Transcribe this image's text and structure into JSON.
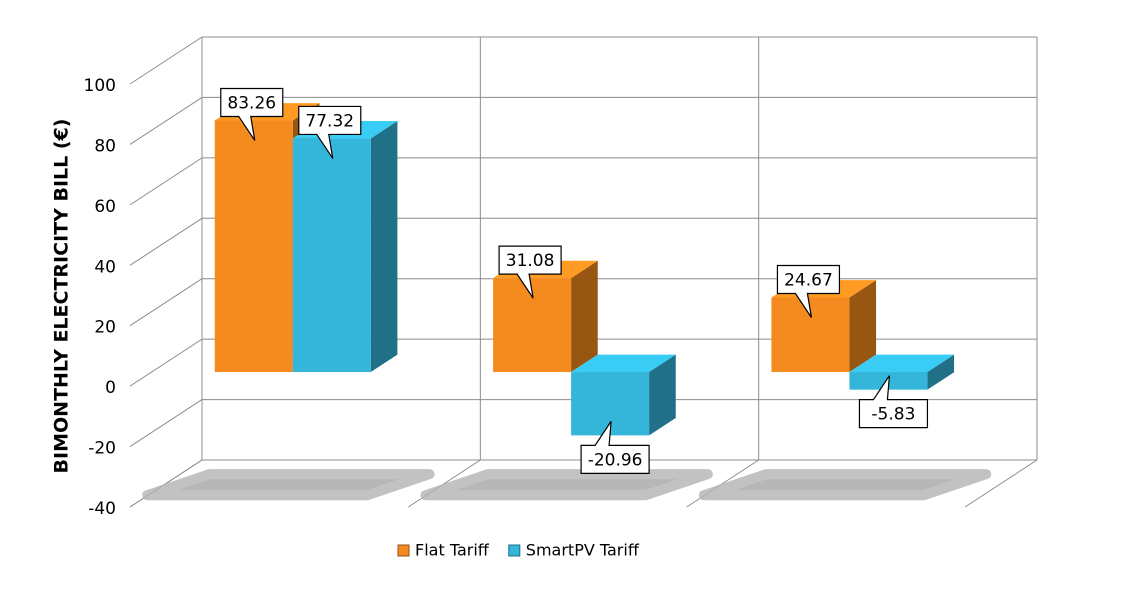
{
  "chart_data": {
    "type": "bar3d",
    "y_label": "BIMONTHLY ELECTRICITY BILL (€)",
    "categories": [
      null,
      null,
      null
    ],
    "series": [
      {
        "name": "Flat Tariff",
        "color": "#f58a1f",
        "values": [
          83.26,
          31.08,
          24.67
        ]
      },
      {
        "name": "SmartPV Tariff",
        "color": "#33b6da",
        "values": [
          77.32,
          -20.96,
          -5.83
        ]
      }
    ],
    "ylim": [
      -40,
      100
    ],
    "yticks": [
      -40,
      -20,
      0,
      20,
      40,
      60,
      80,
      100
    ],
    "grid": true
  }
}
